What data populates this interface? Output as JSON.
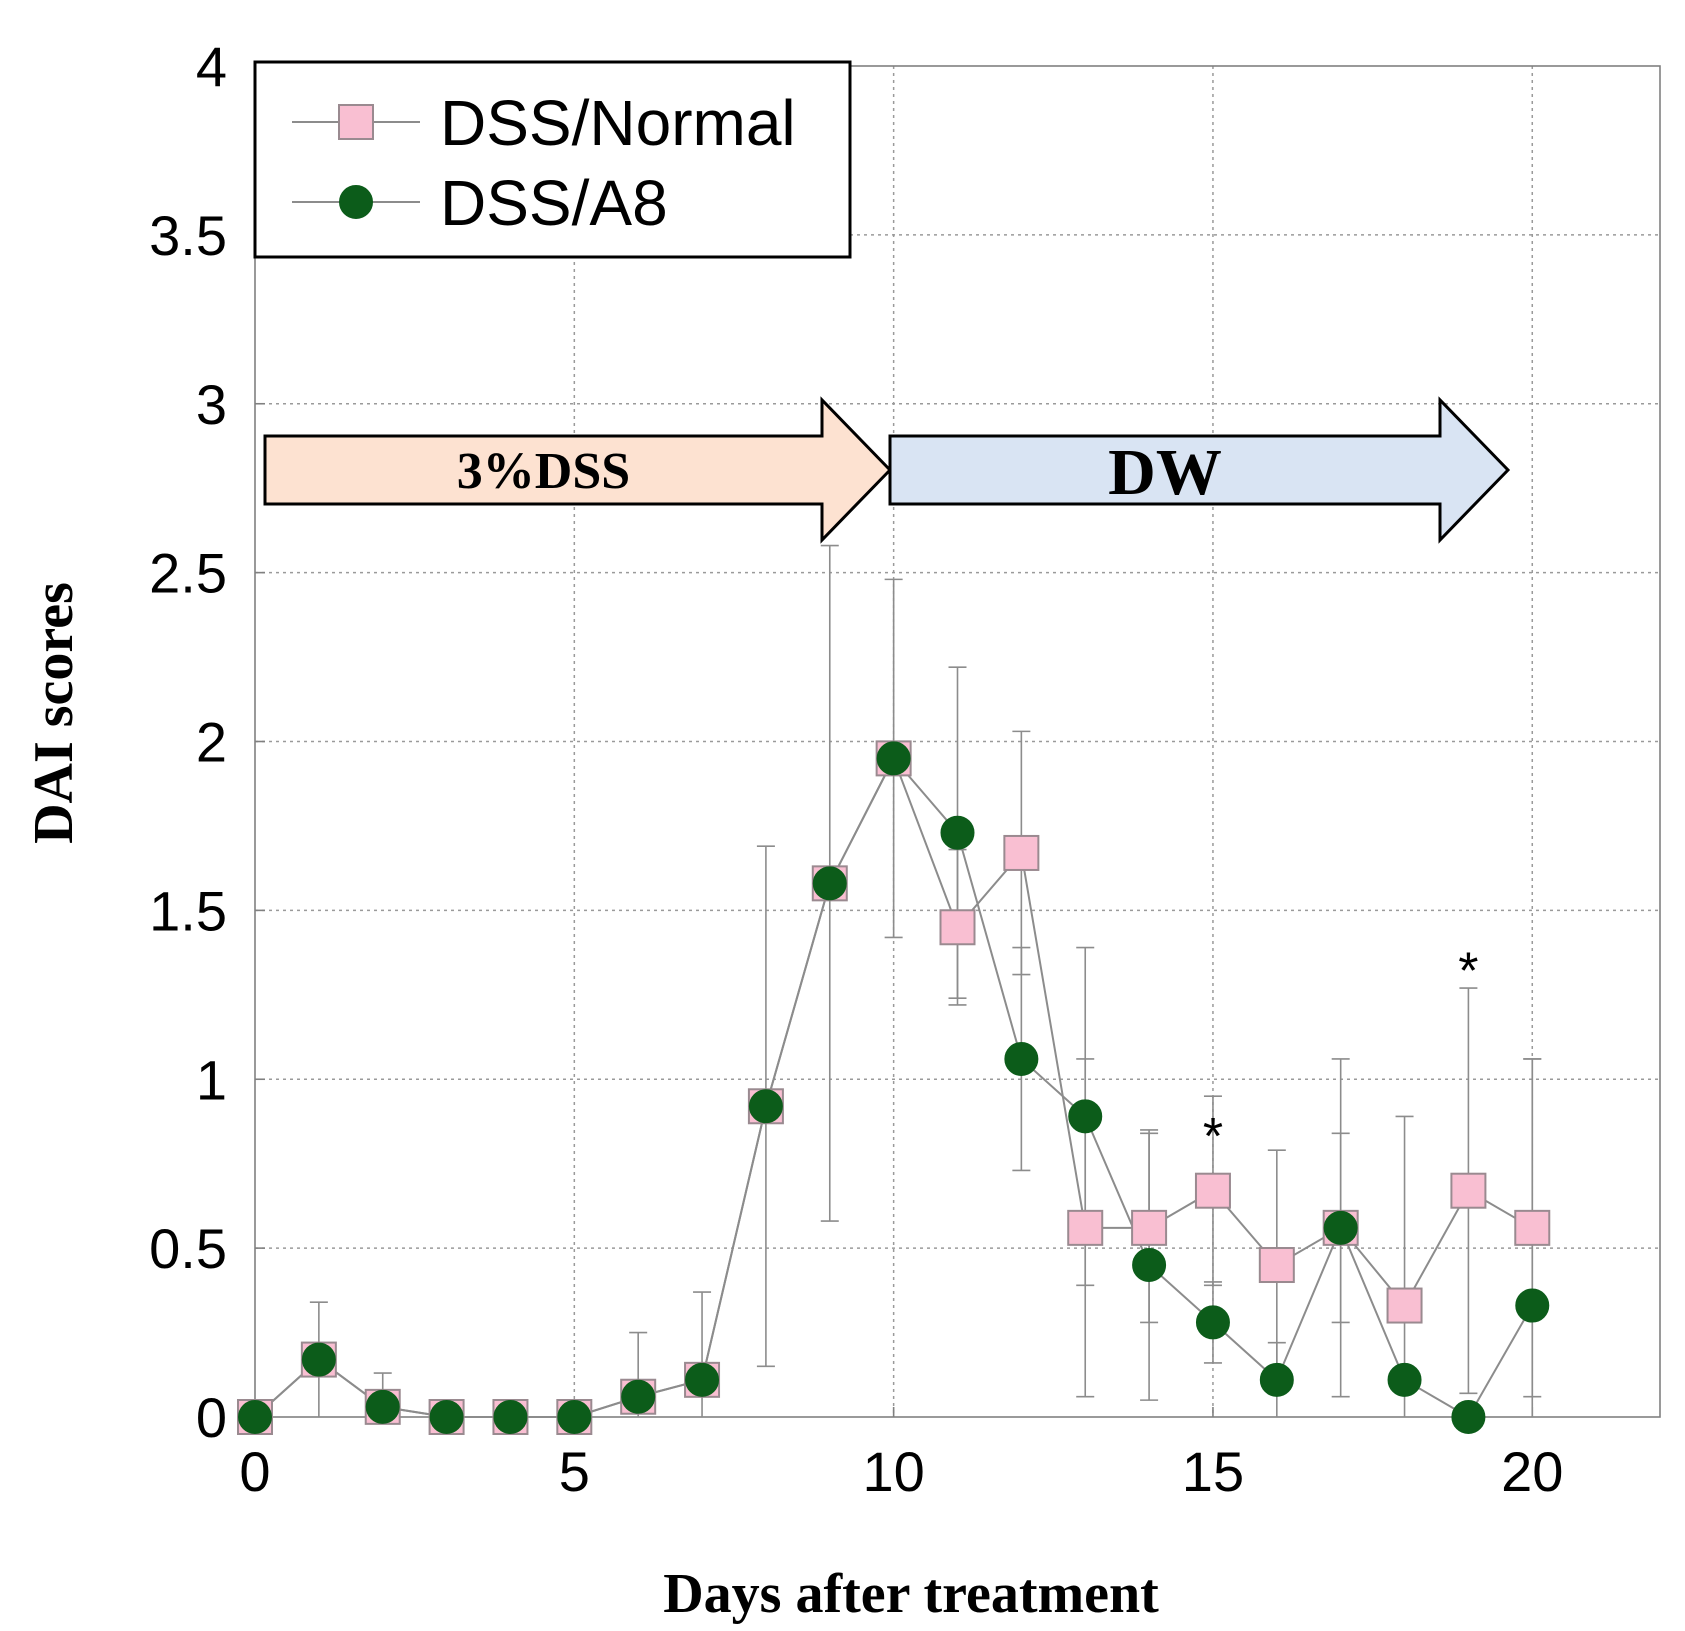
{
  "chart_data": {
    "type": "line",
    "title": "",
    "xlabel": "Days after treatment",
    "ylabel": "DAI scores",
    "xlim": [
      0,
      22
    ],
    "ylim": [
      0,
      4
    ],
    "xticks": [
      0,
      5,
      10,
      15,
      20
    ],
    "xtick_labels": [
      "0",
      "5",
      "10",
      "15",
      "20"
    ],
    "yticks": [
      0,
      0.5,
      1,
      1.5,
      2,
      2.5,
      3,
      3.5,
      4
    ],
    "ytick_labels": [
      "0",
      "0.5",
      "1",
      "1.5",
      "2",
      "2.5",
      "3",
      "3.5",
      "4"
    ],
    "grid": true,
    "legend_position": "top-left",
    "x": [
      0,
      1,
      2,
      3,
      4,
      5,
      6,
      7,
      8,
      9,
      10,
      11,
      12,
      13,
      14,
      15,
      16,
      17,
      18,
      19,
      20
    ],
    "series": [
      {
        "name": "DSS/Normal",
        "marker": "square",
        "color": "#f9bfd2",
        "edge_color": "#9a8a90",
        "values": [
          0,
          0.17,
          0.03,
          0,
          0,
          0,
          0.06,
          0.11,
          0.92,
          1.58,
          1.95,
          1.45,
          1.67,
          0.56,
          0.56,
          0.67,
          0.45,
          0.56,
          0.33,
          0.67,
          0.56
        ],
        "error": [
          0,
          0,
          0,
          0,
          0,
          0,
          0,
          0,
          0,
          0,
          0,
          0.23,
          0.36,
          0.5,
          0.28,
          0.28,
          0.34,
          0.28,
          0.56,
          0.6,
          0.5
        ]
      },
      {
        "name": "DSS/A8",
        "marker": "circle",
        "color": "#0c5c1a",
        "edge_color": "#0c5c1a",
        "values": [
          0,
          0.17,
          0.03,
          0,
          0,
          0,
          0.06,
          0.11,
          0.92,
          1.58,
          1.95,
          1.73,
          1.06,
          0.89,
          0.45,
          0.28,
          0.11,
          0.56,
          0.11,
          0,
          0.33
        ],
        "error": [
          0,
          0.17,
          0.1,
          0,
          0,
          0,
          0.19,
          0.26,
          0.77,
          1,
          0.53,
          0.49,
          0.33,
          0.5,
          0.4,
          0.12,
          0.11,
          0.5,
          0,
          0,
          0.73
        ]
      }
    ],
    "significance": [
      {
        "x": 15,
        "y": 0.88,
        "label": "*"
      },
      {
        "x": 19,
        "y": 1.37,
        "label": "*"
      }
    ],
    "phases": [
      {
        "label": "3%DSS",
        "start": 0,
        "end": 10,
        "fill": "#fde2d1"
      },
      {
        "label": "DW",
        "start": 10,
        "end": 19.5,
        "fill": "#d9e4f3"
      }
    ],
    "line_color": "#8c8c8c",
    "grid_color": "#9a9a9a"
  }
}
